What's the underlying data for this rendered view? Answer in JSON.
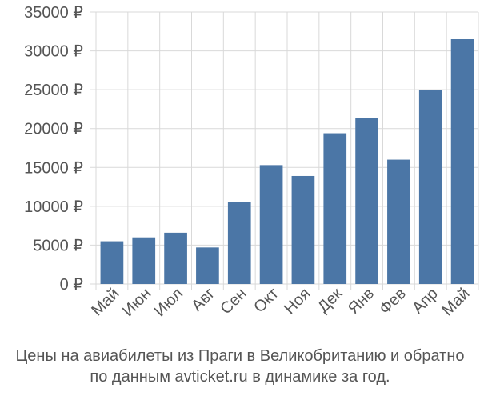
{
  "chart_data": {
    "type": "bar",
    "categories": [
      "Май",
      "Июн",
      "Июл",
      "Авг",
      "Сен",
      "Окт",
      "Ноя",
      "Дек",
      "Янв",
      "Фев",
      "Апр",
      "Май"
    ],
    "values": [
      5500,
      6000,
      6600,
      4700,
      10600,
      15300,
      13900,
      19400,
      21400,
      16000,
      25000,
      31500
    ],
    "yticks": [
      "0 ₽",
      "5000 ₽",
      "10000 ₽",
      "15000 ₽",
      "20000 ₽",
      "25000 ₽",
      "30000 ₽",
      "35000 ₽"
    ],
    "ylim": [
      0,
      35000
    ],
    "grid": true,
    "bar_color": "#4b76a6",
    "grid_color": "#d9d9d9"
  },
  "caption": {
    "line1": "Цены на авиабилеты из Праги в Великобританию и обратно",
    "line2": "по данным avticket.ru в динамике за год."
  }
}
